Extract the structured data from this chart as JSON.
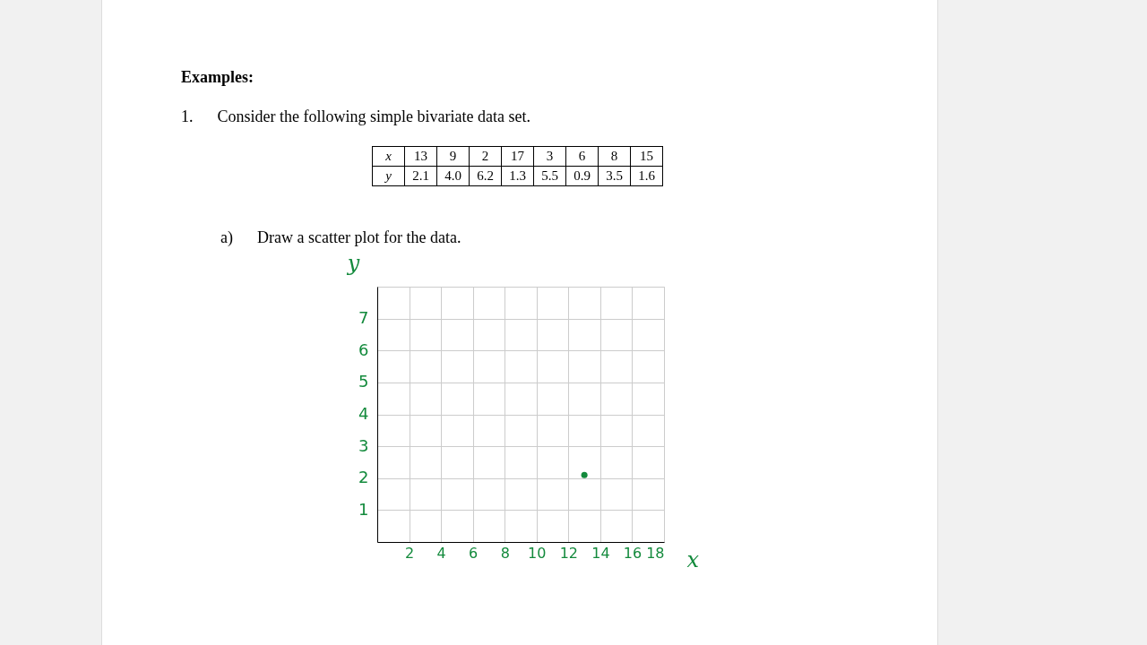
{
  "chart_data": {
    "type": "scatter",
    "title": "Examples:",
    "subtitle": "1.      Consider the following simple bivariate data set.",
    "annotations": [
      "x 13 9 2 17 3 6 8 15",
      "y 2.1 4.0 6.2 1.3 5.5 0.9 3.5 1.6",
      "a)      Draw a scatter plot for the data."
    ],
    "xlabel": "x",
    "ylabel": "y",
    "series": [
      {
        "color": "#138a3c",
        "x": [
          13
        ],
        "values": [
          2.1
        ]
      }
    ],
    "xlim": [
      0,
      18
    ],
    "xticks": [
      2,
      4,
      6,
      8,
      10,
      12,
      14,
      16,
      18
    ],
    "ylim": [
      0,
      8
    ],
    "yticks": [
      1,
      2,
      3,
      4,
      5,
      6,
      7,
      {
        "value": 8,
        "label": null
      }
    ],
    "grid": true,
    "marker": "circle"
  }
}
